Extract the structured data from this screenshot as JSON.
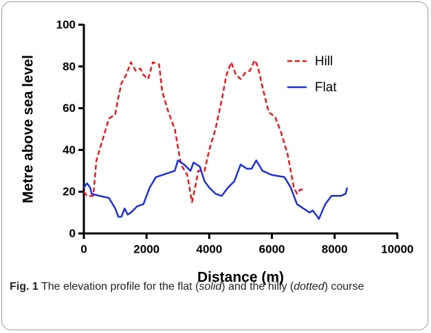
{
  "chart_data": {
    "type": "line",
    "xlabel": "Distance (m)",
    "ylabel": "Metre above sea level",
    "xlim": [
      0,
      10000
    ],
    "xticks": [
      0,
      2000,
      4000,
      6000,
      8000,
      10000
    ],
    "ylim": [
      0,
      100
    ],
    "yticks": [
      0,
      20,
      40,
      60,
      80,
      100
    ],
    "grid": false,
    "legend": "upper right",
    "series": [
      {
        "name": "Hill",
        "color": "#e8161b",
        "dashed": true,
        "x": [
          0,
          100,
          300,
          400,
          600,
          800,
          1000,
          1100,
          1200,
          1350,
          1500,
          1650,
          1800,
          1900,
          2050,
          2200,
          2400,
          2500,
          2700,
          2900,
          3100,
          3300,
          3450,
          3550,
          3650,
          3850,
          4000,
          4200,
          4400,
          4550,
          4700,
          4850,
          5000,
          5150,
          5300,
          5450,
          5550,
          5700,
          5900,
          6100,
          6300,
          6500,
          6700,
          6800,
          6900,
          7000
        ],
        "values": [
          20,
          18,
          18,
          35,
          45,
          55,
          57,
          65,
          72,
          76,
          82,
          78,
          79,
          76,
          74,
          82,
          81,
          68,
          58,
          50,
          33,
          28,
          15,
          22,
          30,
          30,
          40,
          50,
          64,
          76,
          82,
          76,
          74,
          77,
          78,
          83,
          80,
          70,
          58,
          56,
          48,
          38,
          22,
          19,
          21,
          21
        ]
      },
      {
        "name": "Flat",
        "color": "#1a2ee0",
        "dashed": false,
        "x": [
          0,
          100,
          200,
          250,
          500,
          800,
          1000,
          1100,
          1200,
          1300,
          1400,
          1500,
          1700,
          1900,
          2100,
          2300,
          2500,
          2700,
          2900,
          3000,
          3200,
          3400,
          3500,
          3700,
          3850,
          4000,
          4200,
          4400,
          4600,
          4800,
          5000,
          5200,
          5350,
          5500,
          5700,
          6000,
          6400,
          6600,
          6800,
          7000,
          7200,
          7300,
          7500,
          7700,
          7900,
          8200,
          8350,
          8400
        ],
        "values": [
          22,
          24,
          22,
          19,
          18,
          17,
          12,
          8,
          8,
          12,
          9,
          10,
          13,
          14,
          22,
          27,
          28,
          29,
          30,
          35,
          33,
          30,
          34,
          32,
          25,
          22,
          19,
          18,
          22,
          25,
          33,
          31,
          31,
          35,
          30,
          28,
          27,
          22,
          14,
          12,
          10,
          11,
          7,
          14,
          18,
          18,
          19,
          22
        ]
      }
    ],
    "caption": {
      "label": "Fig. 1",
      "parts": [
        " The elevation profile for the flat (",
        "solid",
        ") and the hilly (",
        "dotted",
        ") course"
      ]
    }
  }
}
